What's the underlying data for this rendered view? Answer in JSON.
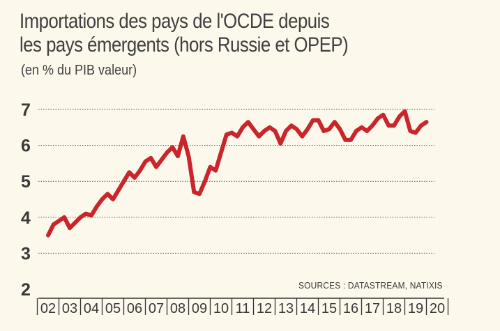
{
  "chart_data": {
    "type": "line",
    "title": "Importations des pays de l'OCDE depuis\nles pays émergents (hors Russie et OPEP)",
    "subtitle": "(en % du PIB valeur)",
    "source": "SOURCES : DATASTREAM, NATIXIS",
    "ylim": [
      2,
      7
    ],
    "yticks": [
      2,
      3,
      4,
      5,
      6,
      7
    ],
    "xticks": [
      "02",
      "03",
      "04",
      "05",
      "06",
      "07",
      "08",
      "09",
      "10",
      "11",
      "12",
      "13",
      "14",
      "15",
      "16",
      "17",
      "18",
      "19",
      "20"
    ],
    "grid": true,
    "line_color": "#c9262c",
    "series": [
      {
        "x": [
          2002.0,
          2002.25,
          2002.5,
          2002.75,
          2003.0,
          2003.25,
          2003.5,
          2003.75,
          2004.0,
          2004.25,
          2004.5,
          2004.75,
          2005.0,
          2005.25,
          2005.5,
          2005.75,
          2006.0,
          2006.25,
          2006.5,
          2006.75,
          2007.0,
          2007.25,
          2007.5,
          2007.75,
          2008.0,
          2008.25,
          2008.5,
          2008.75,
          2009.0,
          2009.25,
          2009.5,
          2009.75,
          2010.0,
          2010.25,
          2010.5,
          2010.75,
          2011.0,
          2011.25,
          2011.5,
          2011.75,
          2012.0,
          2012.25,
          2012.5,
          2012.75,
          2013.0,
          2013.25,
          2013.5,
          2013.75,
          2014.0,
          2014.25,
          2014.5,
          2014.75,
          2015.0,
          2015.25,
          2015.5,
          2015.75,
          2016.0,
          2016.25,
          2016.5,
          2016.75,
          2017.0,
          2017.25,
          2017.5,
          2017.75,
          2018.0,
          2018.25,
          2018.5,
          2018.75,
          2019.0,
          2019.25,
          2019.5
        ],
        "values": [
          3.5,
          3.8,
          3.9,
          4.0,
          3.7,
          3.85,
          4.0,
          4.1,
          4.05,
          4.3,
          4.5,
          4.65,
          4.5,
          4.75,
          5.0,
          5.25,
          5.1,
          5.3,
          5.55,
          5.65,
          5.4,
          5.6,
          5.8,
          5.95,
          5.7,
          6.25,
          5.7,
          4.7,
          4.65,
          5.0,
          5.4,
          5.3,
          5.8,
          6.3,
          6.35,
          6.25,
          6.5,
          6.65,
          6.45,
          6.25,
          6.4,
          6.5,
          6.4,
          6.05,
          6.4,
          6.55,
          6.45,
          6.25,
          6.45,
          6.7,
          6.7,
          6.4,
          6.45,
          6.65,
          6.45,
          6.15,
          6.15,
          6.4,
          6.5,
          6.4,
          6.55,
          6.75,
          6.85,
          6.55,
          6.55,
          6.8,
          6.95,
          6.4,
          6.35,
          6.55,
          6.65
        ]
      }
    ]
  }
}
